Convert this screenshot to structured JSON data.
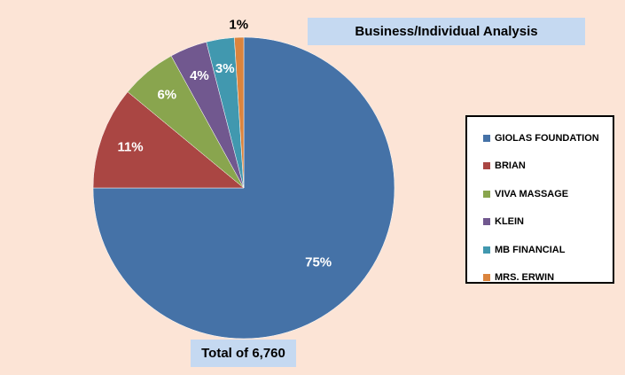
{
  "chart_data": {
    "type": "pie",
    "title": "Business/Individual Analysis",
    "total_label": "Total of 6,760",
    "categories": [
      "GIOLAS FOUNDATION",
      "BRIAN",
      "VIVA MASSAGE",
      "KLEIN",
      "MB FINANCIAL",
      "MRS. ERWIN"
    ],
    "values": [
      75,
      11,
      6,
      4,
      3,
      1
    ],
    "data_labels": [
      "75%",
      "11%",
      "6%",
      "4%",
      "3%",
      "1%"
    ],
    "colors": [
      "#4572a7",
      "#aa4643",
      "#89a54e",
      "#71588f",
      "#4198af",
      "#db843d"
    ],
    "start_angle_deg": 0,
    "direction": "clockwise",
    "legend_position": "right"
  }
}
